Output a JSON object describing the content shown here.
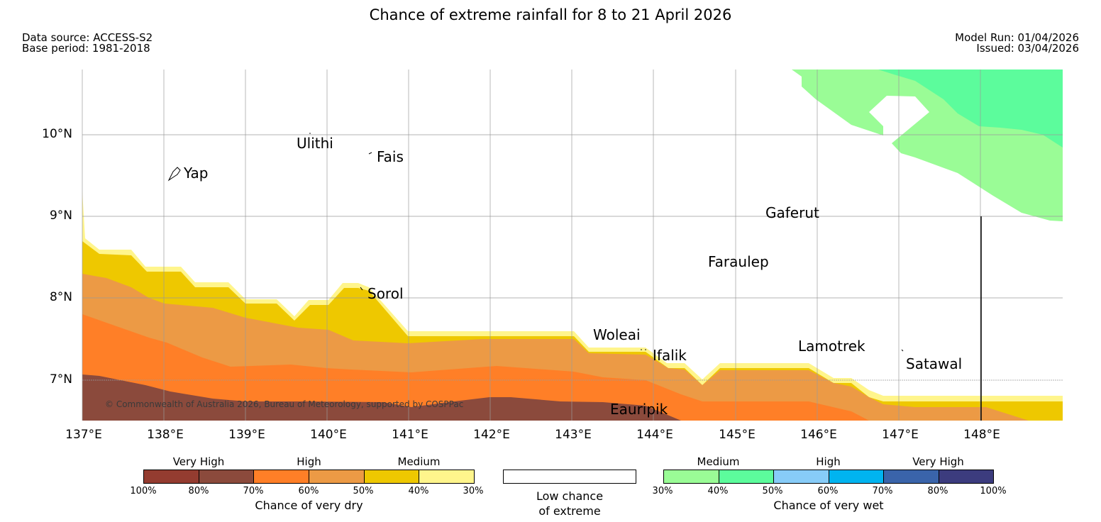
{
  "title": "Chance of extreme rainfall for 8 to 21 April 2026",
  "meta": {
    "data_source": "Data source: ACCESS-S2",
    "base_period": "Base period: 1981-2018",
    "model_run": "Model Run: 01/04/2026",
    "issued": "Issued: 03/04/2026"
  },
  "map": {
    "lat_labels": [
      "10°N",
      "9°N",
      "8°N",
      "7°N"
    ],
    "lon_labels": [
      "137°E",
      "138°E",
      "139°E",
      "140°E",
      "141°E",
      "142°E",
      "143°E",
      "144°E",
      "145°E",
      "146°E",
      "147°E",
      "148°E"
    ],
    "places": [
      "Yap",
      "Ulithi",
      "Fais",
      "Sorol",
      "Gaferut",
      "Faraulep",
      "Woleai",
      "Ifalik",
      "Lamotrek",
      "Satawal",
      "Eauripik"
    ],
    "copyright": "© Commonwealth of Australia 2026, Bureau of Meteorology, supported by COSPPac",
    "colors": {
      "dry_very_high_100_80": "#8b4a3c",
      "dry_high_70_60": "#ff7f27",
      "dry_high_60_50": "#ec9a45",
      "dry_medium_50_40": "#eec800",
      "dry_medium_40_30": "#fff58c",
      "wet_medium_30_40": "#9afc96",
      "wet_medium_40_50": "#5cfc9c"
    }
  },
  "legend": {
    "dry": {
      "groups": [
        "Very High",
        "High",
        "Medium"
      ],
      "ticks": [
        "100%",
        "80%",
        "70%",
        "60%",
        "50%",
        "40%",
        "30%"
      ],
      "colors": [
        "#943c30",
        "#8b4a3c",
        "#ff7f27",
        "#ec9a45",
        "#eec800",
        "#fff58c"
      ],
      "title": "Chance of very dry"
    },
    "low": {
      "title_line1": "Low chance",
      "title_line2": "of extreme"
    },
    "wet": {
      "groups": [
        "Medium",
        "High",
        "Very High"
      ],
      "ticks": [
        "30%",
        "40%",
        "50%",
        "60%",
        "70%",
        "80%",
        "100%"
      ],
      "colors": [
        "#9afc96",
        "#5cfc9c",
        "#87ccf8",
        "#00b4f0",
        "#3a64aa",
        "#3c3c7e"
      ],
      "title": "Chance of very wet"
    }
  }
}
